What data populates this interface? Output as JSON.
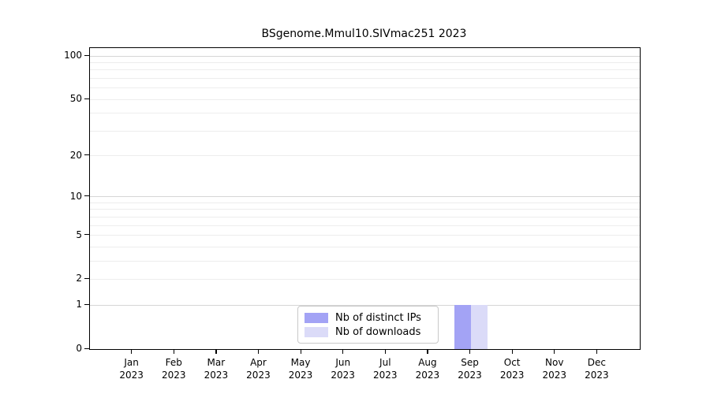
{
  "chart_data": {
    "type": "bar",
    "title": "BSgenome.Mmul10.SIVmac251 2023",
    "categories": [
      "Jan",
      "Feb",
      "Mar",
      "Apr",
      "May",
      "Jun",
      "Jul",
      "Aug",
      "Sep",
      "Oct",
      "Nov",
      "Dec"
    ],
    "year_label": "2023",
    "series": [
      {
        "name": "Nb of distinct IPs",
        "color": "#a3a3f5",
        "values": [
          0,
          0,
          0,
          0,
          0,
          0,
          0,
          0,
          1,
          0,
          0,
          0
        ]
      },
      {
        "name": "Nb of downloads",
        "color": "#dbdbf8",
        "values": [
          0,
          0,
          0,
          0,
          0,
          0,
          0,
          0,
          1,
          0,
          0,
          0
        ]
      }
    ],
    "xlabel": "",
    "ylabel": "",
    "yscale": "log1p",
    "ylim": [
      0,
      100
    ],
    "yticks": [
      0,
      1,
      2,
      5,
      10,
      20,
      50,
      100
    ],
    "minor_gridlines": [
      2,
      3,
      4,
      5,
      6,
      7,
      8,
      9,
      20,
      30,
      40,
      50,
      60,
      70,
      80,
      90
    ],
    "major_gridlines": [
      1,
      10,
      100
    ],
    "grid": "horizontal",
    "legend_position": "inside-bottom-center",
    "colors": {
      "axis": "#000000",
      "grid_minor": "#ededed",
      "grid_major": "#d6d6d6",
      "legend_border": "#c9c9c9",
      "background": "#ffffff"
    }
  }
}
